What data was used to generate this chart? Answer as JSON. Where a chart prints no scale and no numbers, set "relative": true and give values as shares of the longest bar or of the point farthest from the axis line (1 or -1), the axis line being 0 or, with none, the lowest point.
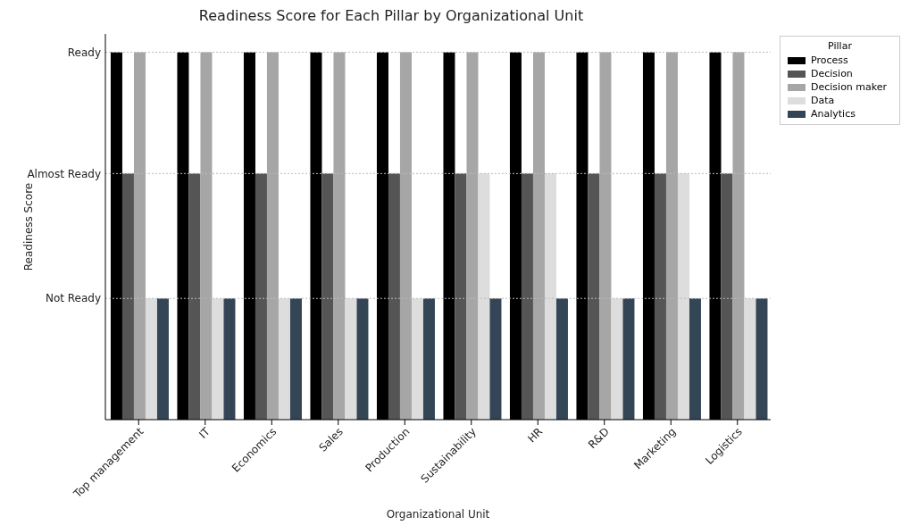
{
  "chart_data": {
    "type": "bar",
    "title": "Readiness Score for Each Pillar by Organizational Unit",
    "xlabel": "Organizational Unit",
    "ylabel": "Readiness Score",
    "legend_title": "Pillar",
    "categories": [
      "Top management",
      "IT",
      "Economics",
      "Sales",
      "Production",
      "Sustainability",
      "HR",
      "R&D",
      "Marketing",
      "Logistics"
    ],
    "relative": true,
    "series": [
      {
        "name": "Process",
        "color": "#000000",
        "values": [
          1,
          1,
          1,
          1,
          1,
          1,
          1,
          1,
          1,
          1
        ]
      },
      {
        "name": "Decision",
        "color": "#555555",
        "values": [
          0.67,
          0.67,
          0.67,
          0.67,
          0.67,
          0.67,
          0.67,
          0.67,
          0.67,
          0.67
        ]
      },
      {
        "name": "Decision maker",
        "color": "#a6a6a6",
        "values": [
          1,
          1,
          1,
          1,
          1,
          1,
          1,
          1,
          1,
          1
        ]
      },
      {
        "name": "Data",
        "color": "#dddddd",
        "values": [
          0.33,
          0.33,
          0.33,
          0.33,
          0.33,
          0.67,
          0.67,
          0.33,
          0.67,
          0.33
        ]
      },
      {
        "name": "Analytics",
        "color": "#344556",
        "values": [
          0.33,
          0.33,
          0.33,
          0.33,
          0.33,
          0.33,
          0.33,
          0.33,
          0.33,
          0.33
        ]
      }
    ],
    "ref_lines": [
      {
        "axis": "y",
        "value": 0.33,
        "label": "Not Ready",
        "color": "#bbbbbb",
        "line_style": "dotted"
      },
      {
        "axis": "y",
        "value": 0.67,
        "label": "Almost Ready",
        "color": "#bbbbbb",
        "line_style": "dotted"
      },
      {
        "axis": "y",
        "value": 1,
        "label": "Ready",
        "color": "#bbbbbb",
        "line_style": "dotted"
      }
    ],
    "legend": "top right"
  }
}
